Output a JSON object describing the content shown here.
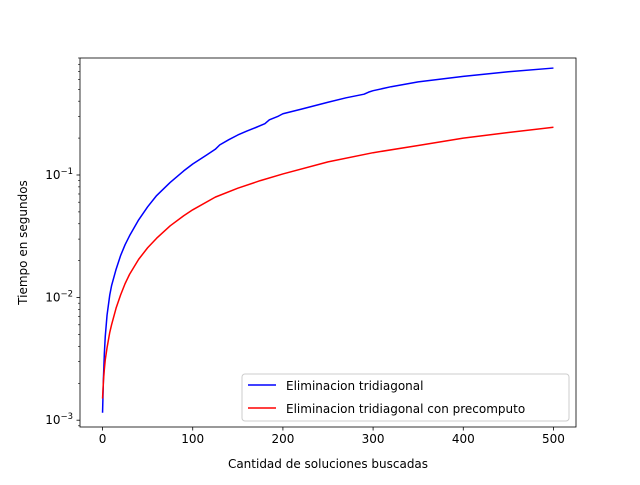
{
  "chart_data": {
    "type": "line",
    "title": "",
    "xlabel": "Cantidad de soluciones buscadas",
    "ylabel": "Tiempo en segundos",
    "xlim": [
      -25,
      525
    ],
    "ylim": [
      0.00088,
      0.9
    ],
    "yscale": "log",
    "grid": false,
    "legend_position": "lower-right",
    "x_ticks": [
      {
        "value": 0,
        "label": "0"
      },
      {
        "value": 100,
        "label": "100"
      },
      {
        "value": 200,
        "label": "200"
      },
      {
        "value": 300,
        "label": "300"
      },
      {
        "value": 400,
        "label": "400"
      },
      {
        "value": 500,
        "label": "500"
      }
    ],
    "y_ticks": [
      {
        "value": 0.001,
        "label": "10",
        "exp": "−3"
      },
      {
        "value": 0.01,
        "label": "10",
        "exp": "−2"
      },
      {
        "value": 0.1,
        "label": "10",
        "exp": "−1"
      }
    ],
    "series": [
      {
        "name": "Eliminacion tridiagonal",
        "color": "#0000ff",
        "x": [
          0,
          1,
          2,
          3,
          5,
          8,
          10,
          15,
          20,
          25,
          30,
          40,
          50,
          60,
          75,
          90,
          100,
          115,
          125,
          130,
          140,
          150,
          160,
          170,
          180,
          185,
          195,
          200,
          220,
          250,
          270,
          290,
          295,
          300,
          320,
          350,
          400,
          450,
          500
        ],
        "y": [
          0.00115,
          0.0022,
          0.0035,
          0.0048,
          0.0072,
          0.0105,
          0.0125,
          0.017,
          0.022,
          0.027,
          0.032,
          0.043,
          0.055,
          0.068,
          0.087,
          0.108,
          0.123,
          0.145,
          0.162,
          0.176,
          0.194,
          0.212,
          0.228,
          0.244,
          0.262,
          0.282,
          0.302,
          0.316,
          0.344,
          0.392,
          0.426,
          0.456,
          0.474,
          0.487,
          0.525,
          0.575,
          0.638,
          0.695,
          0.745
        ]
      },
      {
        "name": "Eliminacion tridiagonal con precomputo",
        "color": "#ff0000",
        "x": [
          0,
          1,
          2,
          3,
          5,
          8,
          10,
          15,
          20,
          25,
          30,
          40,
          50,
          60,
          75,
          90,
          100,
          125,
          150,
          175,
          200,
          250,
          300,
          350,
          400,
          450,
          500
        ],
        "y": [
          0.0015,
          0.0021,
          0.0026,
          0.0031,
          0.0039,
          0.0052,
          0.006,
          0.0082,
          0.0105,
          0.013,
          0.0155,
          0.0205,
          0.0255,
          0.0305,
          0.0385,
          0.0465,
          0.052,
          0.066,
          0.078,
          0.09,
          0.102,
          0.128,
          0.152,
          0.174,
          0.2,
          0.222,
          0.245
        ]
      }
    ]
  }
}
